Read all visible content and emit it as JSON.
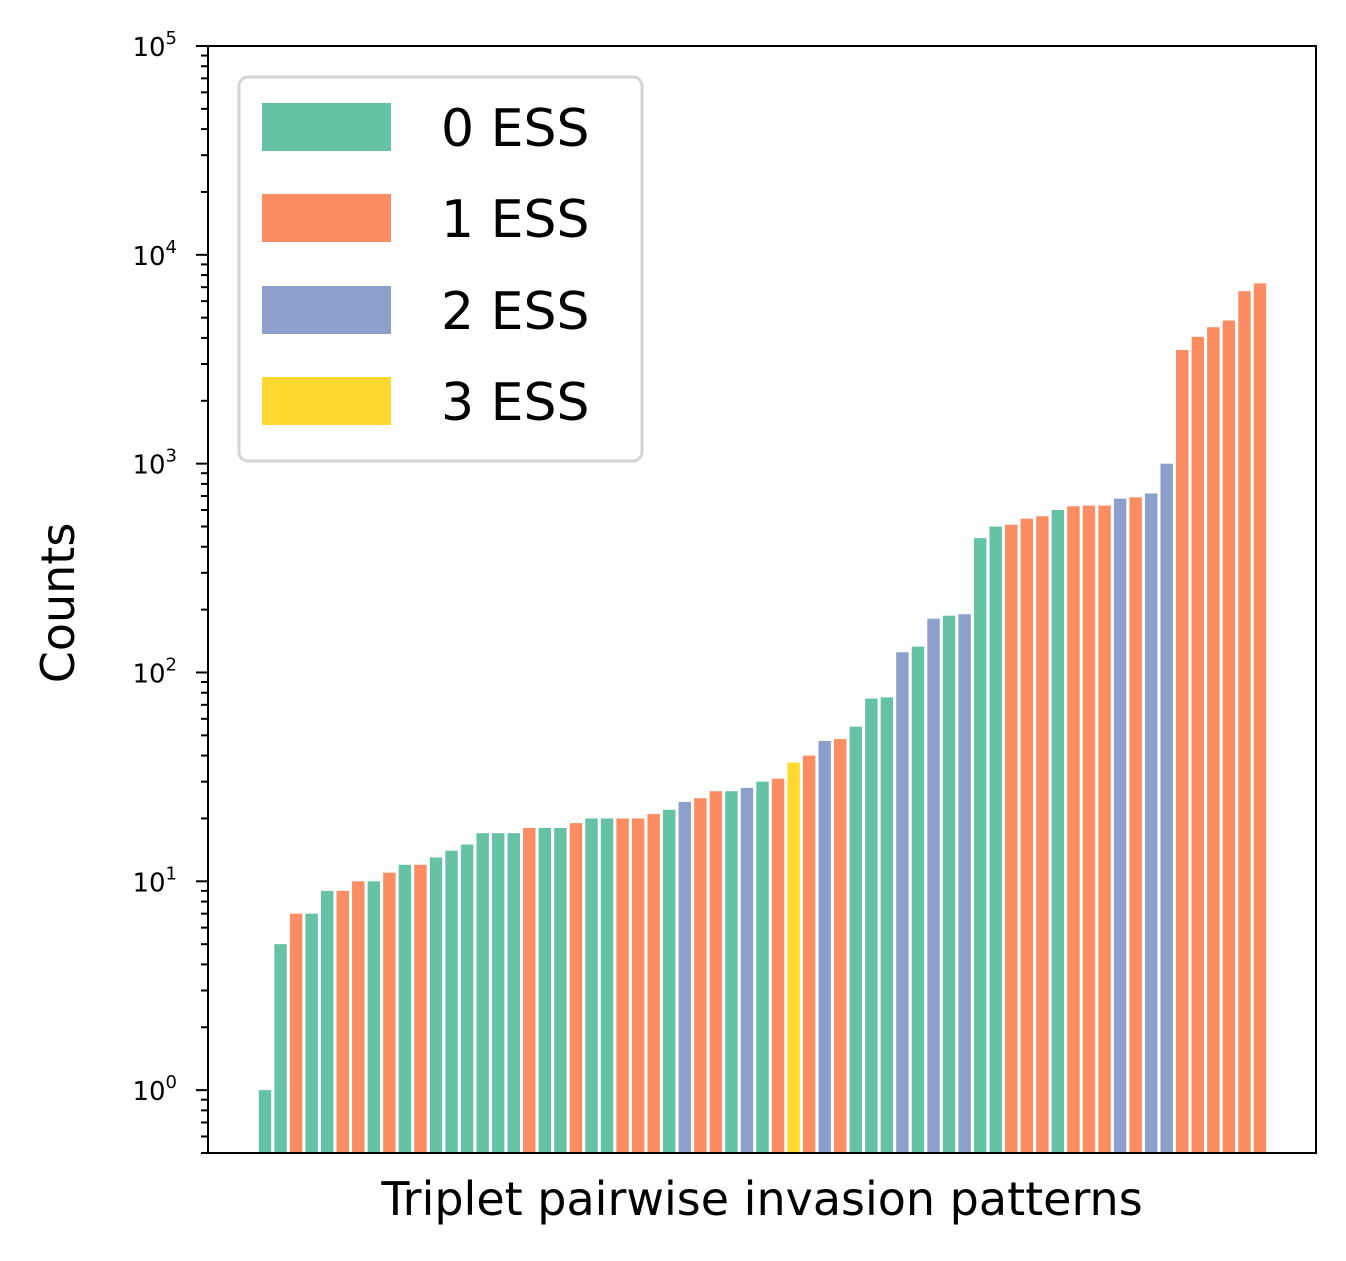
{
  "chart_data": {
    "type": "bar",
    "title": "",
    "xlabel": "Triplet pairwise invasion patterns",
    "ylabel": "Counts",
    "yscale": "log",
    "ylim": [
      0.5,
      100000
    ],
    "yticks": [
      {
        "base": "10",
        "exp": "0",
        "value": 1
      },
      {
        "base": "10",
        "exp": "1",
        "value": 10
      },
      {
        "base": "10",
        "exp": "2",
        "value": 100
      },
      {
        "base": "10",
        "exp": "3",
        "value": 1000
      },
      {
        "base": "10",
        "exp": "4",
        "value": 10000
      },
      {
        "base": "10",
        "exp": "5",
        "value": 100000
      }
    ],
    "grid": false,
    "legend_position": "top-left",
    "legend": [
      {
        "label": "0 ESS",
        "color": "#66c2a5"
      },
      {
        "label": "1 ESS",
        "color": "#fc8d62"
      },
      {
        "label": "2 ESS",
        "color": "#8da0cb"
      },
      {
        "label": "3 ESS",
        "color": "#ffd92f"
      }
    ],
    "values": [
      1,
      5,
      7,
      7,
      9,
      9,
      10,
      10,
      11,
      12,
      12,
      13,
      14,
      15,
      17,
      17,
      17,
      18,
      18,
      18,
      19,
      20,
      20,
      20,
      20,
      21,
      22,
      24,
      25,
      27,
      27,
      28,
      30,
      31,
      37,
      40,
      47,
      48,
      55,
      75,
      76,
      125,
      133,
      181,
      187,
      190,
      440,
      500,
      510,
      545,
      560,
      600,
      625,
      630,
      630,
      680,
      690,
      720,
      1000,
      3500,
      4050,
      4500,
      4850,
      6700,
      7300
    ],
    "ess_class": [
      0,
      0,
      1,
      0,
      0,
      1,
      1,
      0,
      1,
      0,
      1,
      0,
      0,
      0,
      0,
      0,
      0,
      1,
      0,
      0,
      1,
      0,
      0,
      1,
      1,
      1,
      0,
      2,
      1,
      1,
      0,
      2,
      0,
      1,
      3,
      1,
      2,
      1,
      0,
      0,
      0,
      2,
      0,
      2,
      0,
      2,
      0,
      0,
      1,
      1,
      1,
      0,
      1,
      1,
      1,
      2,
      1,
      2,
      2,
      1,
      1,
      1,
      1,
      1,
      1
    ]
  }
}
